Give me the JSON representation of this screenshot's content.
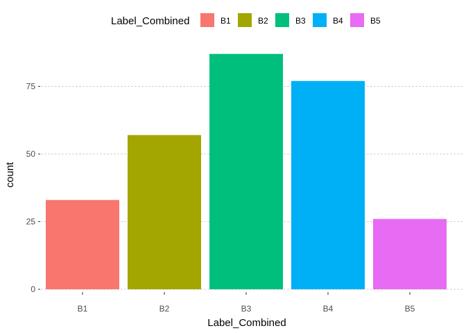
{
  "chart_data": {
    "type": "bar",
    "title": "",
    "xlabel": "Label_Combined",
    "ylabel": "count",
    "categories": [
      "B1",
      "B2",
      "B3",
      "B4",
      "B5"
    ],
    "values": [
      33,
      57,
      87,
      77,
      26
    ],
    "ylim": [
      0,
      90
    ],
    "yticks": [
      0,
      25,
      50,
      75
    ],
    "ytick_labels": [
      "0",
      "25",
      "50",
      "75"
    ],
    "grid": true,
    "legend": {
      "title": "Label_Combined",
      "placement": "top",
      "entries": [
        "B1",
        "B2",
        "B3",
        "B4",
        "B5"
      ]
    },
    "colors": [
      "#F8766D",
      "#A3A500",
      "#00BF7D",
      "#00B0F6",
      "#E76BF3"
    ]
  }
}
